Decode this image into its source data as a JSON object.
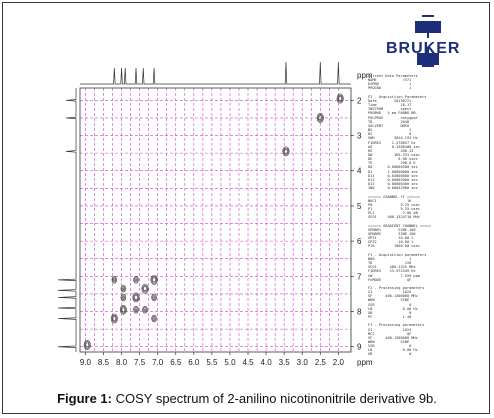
{
  "caption": {
    "label": "Figure 1:",
    "text": " COSY spectrum of 2-anilino nicotinonitrile derivative 9b."
  },
  "logo": {
    "text": "BRUKER",
    "color": "#1d2f7a"
  },
  "colors": {
    "grid": "#cc44cc",
    "contour": "#333333",
    "axis": "#333333"
  },
  "chart_data": {
    "type": "heatmap",
    "title": "",
    "xlabel": "",
    "ylabel": "ppm",
    "x_unit_label": "ppm",
    "x_axis_reversed": true,
    "y_axis_reversed": true,
    "xlim": [
      9.15,
      1.65
    ],
    "ylim": [
      1.65,
      9.15
    ],
    "x_ticks": [
      "9.0",
      "8.5",
      "8.0",
      "7.5",
      "7.0",
      "6.5",
      "6.0",
      "5.5",
      "5.0",
      "4.5",
      "4.0",
      "3.5",
      "3.0",
      "2.5",
      "2.0"
    ],
    "y_ticks": [
      "2",
      "3",
      "4",
      "5",
      "6",
      "7",
      "8",
      "9"
    ],
    "grid": true,
    "diagonal_peaks": [
      {
        "x": 8.95,
        "y": 8.95
      },
      {
        "x": 8.2,
        "y": 8.2
      },
      {
        "x": 7.95,
        "y": 7.95
      },
      {
        "x": 7.6,
        "y": 7.6
      },
      {
        "x": 7.35,
        "y": 7.35
      },
      {
        "x": 7.1,
        "y": 7.1
      },
      {
        "x": 3.45,
        "y": 3.45
      },
      {
        "x": 2.5,
        "y": 2.5
      },
      {
        "x": 1.95,
        "y": 1.95
      }
    ],
    "cross_peaks": [
      {
        "x": 8.2,
        "y": 7.1
      },
      {
        "x": 7.1,
        "y": 8.2
      },
      {
        "x": 7.95,
        "y": 7.35
      },
      {
        "x": 7.35,
        "y": 7.95
      },
      {
        "x": 7.6,
        "y": 7.1
      },
      {
        "x": 7.1,
        "y": 7.6
      },
      {
        "x": 7.95,
        "y": 7.6
      },
      {
        "x": 7.6,
        "y": 7.95
      }
    ],
    "top_projection_peaks": [
      8.2,
      8.0,
      7.9,
      7.6,
      7.4,
      7.1,
      3.45,
      2.5,
      2.0
    ],
    "left_projection_peaks": [
      2.0,
      2.5,
      3.45,
      7.1,
      7.4,
      7.6,
      7.9,
      8.2,
      9.0
    ]
  },
  "parameters": {
    "lines": [
      "Current Data Parameters",
      "NAME            7571",
      "EXPNO              1",
      "PROCNO             1",
      "",
      "F2 - Acquisition Parameters",
      "Date_       20130721",
      "Time           18.17",
      "INSTRUM        spect",
      "PROBHD   5 mm PABBO BB-",
      "PULPROG        cosygpqf",
      "TD             2048",
      "SOLVENT        DMSO",
      "NS                 1",
      "DS                 8",
      "SWH         3024.193 Hz",
      "FIDRES     1.476657 Hz",
      "AQ         0.3386400 sec",
      "RG             200.13",
      "DW          165.333 usec",
      "DE            6.00 usec",
      "TE             298.0 K",
      "D0       0.00000300 sec",
      "D1       1.00000000 sec",
      "D11      0.03000000 sec",
      "D12      0.00002000 sec",
      "D13      0.00000400 sec",
      "IN0      0.00032980 sec",
      "",
      "====== CHANNEL f1 ======",
      "NUC1              1H",
      "P0             9.25 usec",
      "P1             9.25 usec",
      "PL1            -3.00 dB",
      "SFO1     400.1324710 MHz",
      "",
      "====== GRADIENT CHANNEL =====",
      "GPNAM1        SINE.100",
      "GPNAM2        SINE.100",
      "GPZ1          10.00 %",
      "GPZ2          10.00 %",
      "P16         1000.00 usec",
      "",
      "F1 - Acquisition parameters",
      "ND0                1",
      "TD               128",
      "SFO1      400.1325 MHz",
      "FIDRES    23.972445 Hz",
      "SW             7.559 ppm",
      "FnMODE            QF",
      "",
      "F2 - Processing parameters",
      "SI              1024",
      "SF      400.1300000 MHz",
      "WDW            SINE",
      "SSB                0",
      "LB              0.00 Hz",
      "GB                 0",
      "PC              1.40",
      "",
      "F1 - Processing parameters",
      "SI              1024",
      "MC2               QF",
      "SF      400.1300000 MHz",
      "WDW            SINE",
      "SSB                0",
      "LB              0.00 Hz",
      "GB                 0"
    ]
  }
}
